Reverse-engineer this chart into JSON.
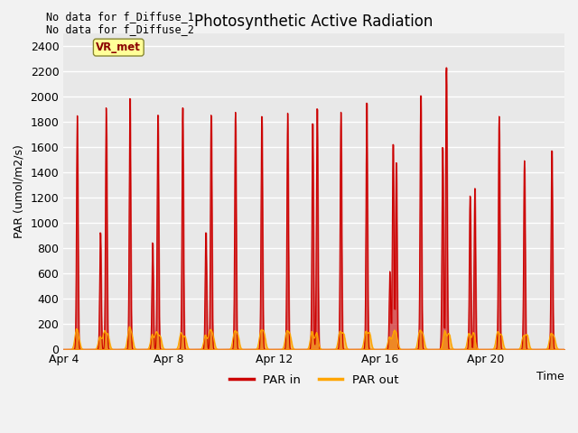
{
  "title": "Photosynthetic Active Radiation",
  "xlabel": "Time",
  "ylabel": "PAR (umol/m2/s)",
  "ylim": [
    0,
    2500
  ],
  "yticks": [
    0,
    200,
    400,
    600,
    800,
    1000,
    1200,
    1400,
    1600,
    1800,
    2000,
    2200,
    2400
  ],
  "bg_color": "#e8e8e8",
  "fig_bg_color": "#f2f2f2",
  "text_annotations": [
    "No data for f_Diffuse_1",
    "No data for f_Diffuse_2"
  ],
  "legend_labels": [
    "PAR in",
    "PAR out"
  ],
  "legend_colors": [
    "#cc0000",
    "#ffa500"
  ],
  "vr_met_label": "VR_met",
  "vr_met_bg": "#ffff99",
  "vr_met_border": "#888833",
  "par_in_color": "#cc0000",
  "par_out_color": "#ffa500",
  "xtick_labels": [
    "Apr 4",
    "Apr 8",
    "Apr 12",
    "Apr 16",
    "Apr 20"
  ],
  "xtick_positions": [
    0,
    4,
    8,
    12,
    16
  ],
  "n_days": 19,
  "figsize": [
    6.4,
    4.8
  ],
  "dpi": 100
}
